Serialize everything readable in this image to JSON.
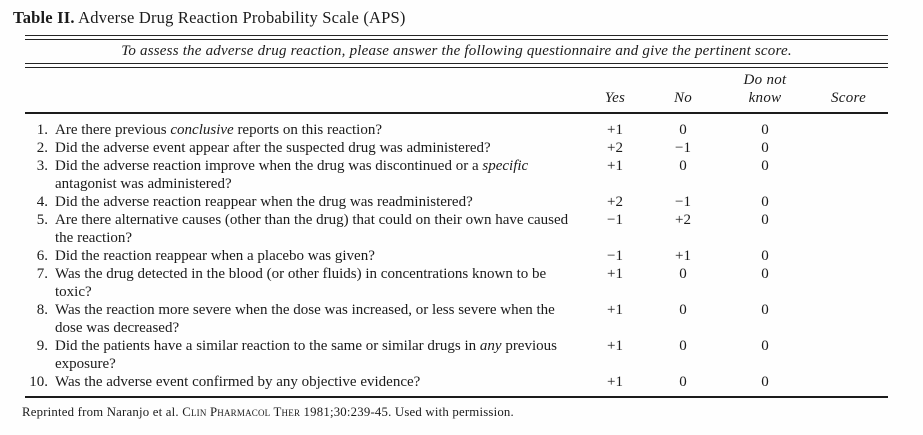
{
  "title": {
    "prefix": "Table II.",
    "text": " Adverse Drug Reaction Probability Scale (APS)"
  },
  "subtitle": "To assess the adverse drug reaction, please answer the following questionnaire and give the pertinent score.",
  "columns": {
    "yes": "Yes",
    "no": "No",
    "do_not_know_line1": "Do not",
    "do_not_know_line2": "know",
    "score": "Score"
  },
  "rows": [
    {
      "num": "1.",
      "pre": "Are there previous ",
      "em": "conclusive",
      "post": " reports on this reaction?",
      "yes": "+1",
      "no": "0",
      "dk": "0",
      "score": ""
    },
    {
      "num": "2.",
      "pre": "Did the adverse event appear after the suspected drug was administered?",
      "em": "",
      "post": "",
      "yes": "+2",
      "no": "−1",
      "dk": "0",
      "score": ""
    },
    {
      "num": "3.",
      "pre": "Did the adverse reaction improve when the drug was discontinued or a ",
      "em": "specific",
      "post": " antagonist was administered?",
      "yes": "+1",
      "no": "0",
      "dk": "0",
      "score": ""
    },
    {
      "num": "4.",
      "pre": "Did the adverse reaction reappear when the drug was readministered?",
      "em": "",
      "post": "",
      "yes": "+2",
      "no": "−1",
      "dk": "0",
      "score": ""
    },
    {
      "num": "5.",
      "pre": "Are there alternative causes (other than the drug) that could on their own have caused the reaction?",
      "em": "",
      "post": "",
      "yes": "−1",
      "no": "+2",
      "dk": "0",
      "score": ""
    },
    {
      "num": "6.",
      "pre": "Did the reaction reappear when a placebo was given?",
      "em": "",
      "post": "",
      "yes": "−1",
      "no": "+1",
      "dk": "0",
      "score": ""
    },
    {
      "num": "7.",
      "pre": "Was the drug detected in the blood (or other fluids) in concentrations known to be toxic?",
      "em": "",
      "post": "",
      "yes": "+1",
      "no": "0",
      "dk": "0",
      "score": ""
    },
    {
      "num": "8.",
      "pre": "Was the reaction more severe when the dose was increased, or less severe when the dose was decreased?",
      "em": "",
      "post": "",
      "yes": "+1",
      "no": "0",
      "dk": "0",
      "score": ""
    },
    {
      "num": "9.",
      "pre": "Did the patients have a similar reaction to the same or similar drugs in ",
      "em": "any",
      "post": " previous exposure?",
      "yes": "+1",
      "no": "0",
      "dk": "0",
      "score": ""
    },
    {
      "num": "10.",
      "pre": "Was the adverse event confirmed by any objective evidence?",
      "em": "",
      "post": "",
      "yes": "+1",
      "no": "0",
      "dk": "0",
      "score": ""
    }
  ],
  "footer": {
    "pre": "Reprinted from Naranjo et al. ",
    "journal": "Clin Pharmacol Ther",
    "post": " 1981;30:239-45. Used with permission."
  }
}
